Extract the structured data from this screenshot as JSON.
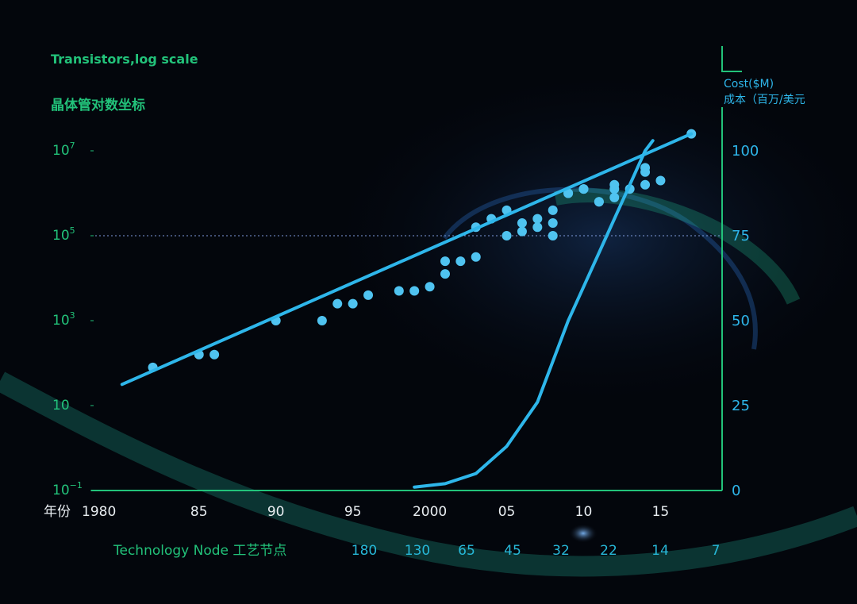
{
  "left_axis": {
    "title_en": "Transistors,log scale",
    "title_zh": "晶体管对数坐标",
    "ticks": [
      {
        "base": "10",
        "exp": "7",
        "value_log10": 7
      },
      {
        "base": "10",
        "exp": "5",
        "value_log10": 5
      },
      {
        "base": "10",
        "exp": "3",
        "value_log10": 3
      },
      {
        "base": "10",
        "exp": "",
        "value_log10": 1
      },
      {
        "base": "10",
        "exp": "−1",
        "value_log10": -1
      }
    ]
  },
  "right_axis": {
    "title_en": "Cost($M)",
    "title_zh": "成本（百万/美元",
    "ticks": [
      "100",
      "75",
      "50",
      "25",
      "0"
    ]
  },
  "x_axis": {
    "label_zh": "年份",
    "ticks": [
      "1980",
      "85",
      "90",
      "95",
      "2000",
      "05",
      "10",
      "15"
    ]
  },
  "node_row": {
    "label": "Technology Node 工艺节点",
    "values": [
      "180",
      "130",
      "65",
      "45",
      "32",
      "22",
      "14",
      "7"
    ]
  },
  "colors": {
    "background": "#03060c",
    "axis_green": "#22c27a",
    "series_blue": "#2eb6ea",
    "points": "#4fc3f0"
  },
  "chart_data": {
    "type": "scatter",
    "x_axis": {
      "label": "年份",
      "range": [
        1978,
        2019
      ]
    },
    "y_left": {
      "label": "Transistors,log scale",
      "scale": "log",
      "range_log10": [
        -1,
        7.8
      ]
    },
    "y_right": {
      "label": "Cost($M)",
      "range": [
        0,
        105
      ]
    },
    "grid": false,
    "series": [
      {
        "axis": "left",
        "kind": "scatter",
        "points": [
          [
            1982,
            1.9
          ],
          [
            1985,
            2.2
          ],
          [
            1986,
            2.2
          ],
          [
            1990,
            3.0
          ],
          [
            1993,
            3.0
          ],
          [
            1994,
            3.4
          ],
          [
            1995,
            3.4
          ],
          [
            1996,
            3.6
          ],
          [
            1998,
            3.7
          ],
          [
            1999,
            3.7
          ],
          [
            2000,
            3.8
          ],
          [
            2001,
            4.1
          ],
          [
            2001,
            4.4
          ],
          [
            2002,
            4.4
          ],
          [
            2003,
            4.5
          ],
          [
            2003,
            5.2
          ],
          [
            2004,
            5.4
          ],
          [
            2005,
            5.6
          ],
          [
            2005,
            5.0
          ],
          [
            2006,
            5.3
          ],
          [
            2006,
            5.1
          ],
          [
            2007,
            5.4
          ],
          [
            2007,
            5.2
          ],
          [
            2008,
            5.0
          ],
          [
            2008,
            5.3
          ],
          [
            2008,
            5.6
          ],
          [
            2009,
            6.0
          ],
          [
            2009,
            6.0
          ],
          [
            2010,
            6.1
          ],
          [
            2010,
            6.1
          ],
          [
            2011,
            5.8
          ],
          [
            2011,
            5.8
          ],
          [
            2012,
            6.1
          ],
          [
            2012,
            5.9
          ],
          [
            2012,
            6.2
          ],
          [
            2013,
            6.1
          ],
          [
            2014,
            6.2
          ],
          [
            2014,
            6.6
          ],
          [
            2014,
            6.5
          ],
          [
            2015,
            6.3
          ],
          [
            2017,
            7.4
          ]
        ]
      },
      {
        "axis": "left",
        "kind": "trend-line",
        "points": [
          [
            1980,
            1.5
          ],
          [
            2017,
            7.4
          ]
        ]
      },
      {
        "axis": "right",
        "kind": "line",
        "points": [
          [
            1999,
            1
          ],
          [
            2001,
            2
          ],
          [
            2003,
            5
          ],
          [
            2005,
            13
          ],
          [
            2007,
            26
          ],
          [
            2009,
            50
          ],
          [
            2011,
            70
          ],
          [
            2013,
            90
          ],
          [
            2014,
            100
          ],
          [
            2014.5,
            103
          ]
        ]
      }
    ]
  }
}
